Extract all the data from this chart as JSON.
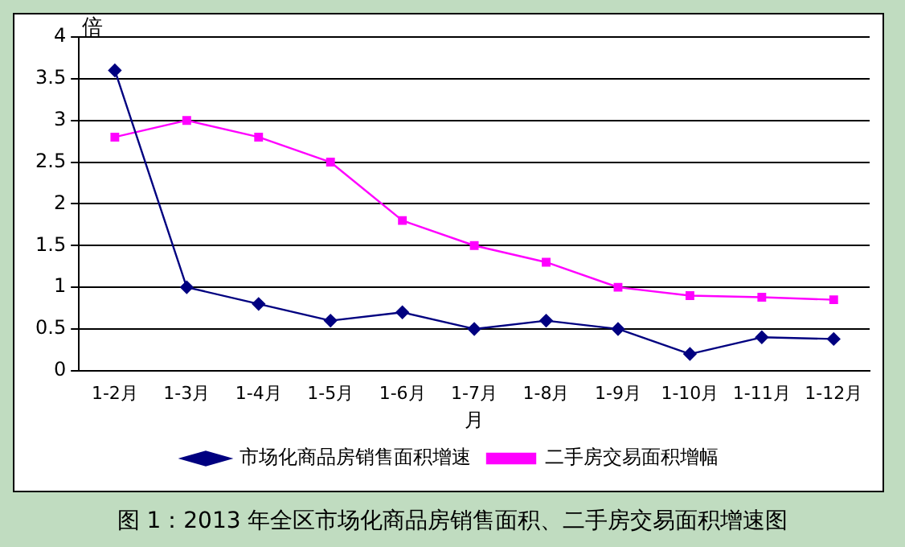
{
  "chart_data": {
    "type": "line",
    "title": "图 1：2013 年全区市场化商品房销售面积、二手房交易面积增速图",
    "xlabel": "月",
    "ylabel": "倍",
    "categories": [
      "1-2月",
      "1-3月",
      "1-4月",
      "1-5月",
      "1-6月",
      "1-7月",
      "1-8月",
      "1-9月",
      "1-10月",
      "1-11月",
      "1-12月"
    ],
    "series": [
      {
        "name": "市场化商品房销售面积增速",
        "color": "#000080",
        "marker": "diamond",
        "values": [
          3.6,
          1.0,
          0.8,
          0.6,
          0.7,
          0.5,
          0.6,
          0.5,
          0.2,
          0.4,
          0.38
        ]
      },
      {
        "name": "二手房交易面积增幅",
        "color": "#ff00ff",
        "marker": "square",
        "values": [
          2.8,
          3.0,
          2.8,
          2.5,
          1.8,
          1.5,
          1.3,
          1.0,
          0.9,
          0.88,
          0.85
        ]
      }
    ],
    "ylim": [
      0,
      4
    ],
    "yticks": [
      0,
      0.5,
      1,
      1.5,
      2,
      2.5,
      3,
      3.5,
      4
    ],
    "grid": "y",
    "legend": "bottom",
    "line_style": "solid"
  }
}
